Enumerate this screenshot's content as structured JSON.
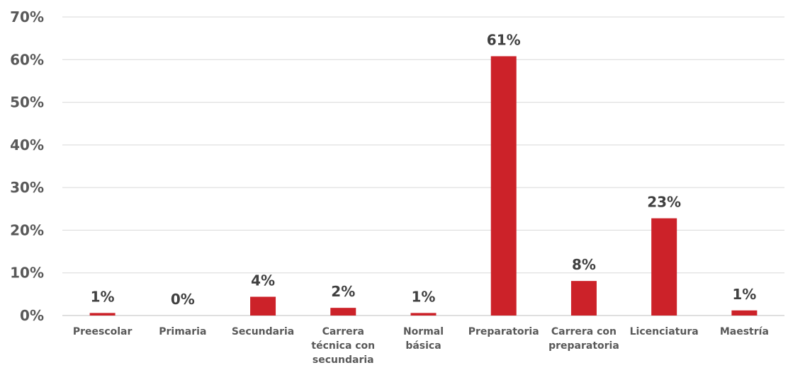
{
  "chart_data": {
    "type": "bar",
    "title": "",
    "xlabel": "",
    "ylabel": "",
    "ylim": [
      0,
      70
    ],
    "y_ticks": [
      "0%",
      "10%",
      "20%",
      "30%",
      "40%",
      "50%",
      "60%",
      "70%"
    ],
    "grid": true,
    "legend": "none",
    "bar_color": "#cc2229",
    "categories": [
      [
        "Preescolar"
      ],
      [
        "Primaria"
      ],
      [
        "Secundaria"
      ],
      [
        "Carrera",
        "técnica con",
        "secundaria"
      ],
      [
        "Normal",
        "básica"
      ],
      [
        "Preparatoria"
      ],
      [
        "Carrera con",
        "preparatoria"
      ],
      [
        "Licenciatura"
      ],
      [
        "Maestría"
      ]
    ],
    "values": [
      0.6,
      0.0,
      4.4,
      1.8,
      0.6,
      60.8,
      8.1,
      22.8,
      1.2
    ],
    "data_labels": [
      "1%",
      "0%",
      "4%",
      "2%",
      "1%",
      "61%",
      "8%",
      "23%",
      "1%"
    ]
  }
}
